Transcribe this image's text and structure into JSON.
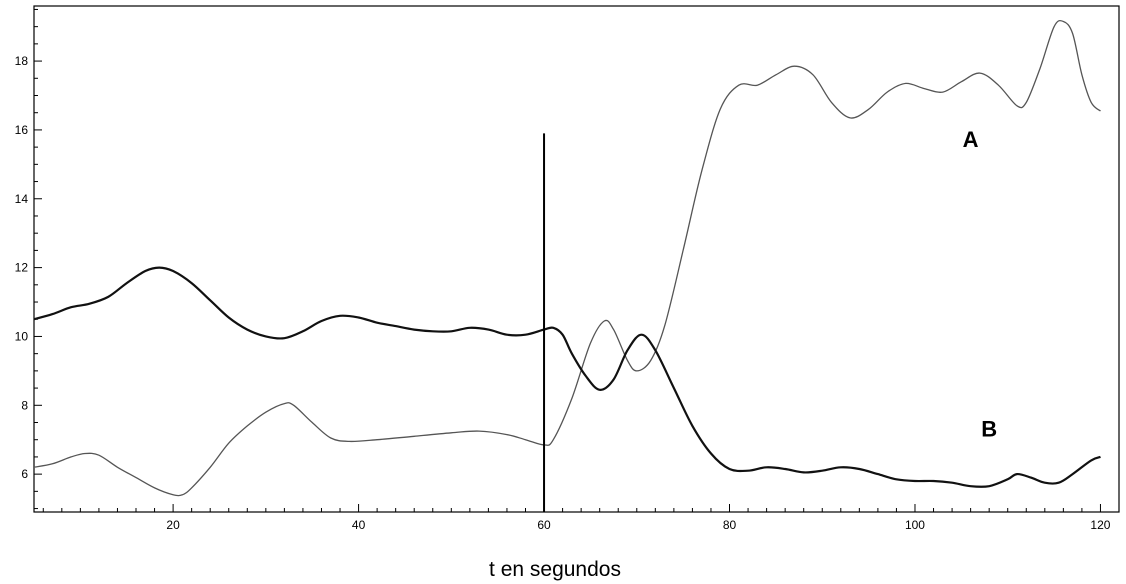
{
  "chart_data": {
    "type": "line",
    "xlabel": "t en segundos",
    "ylabel": "",
    "xlim": [
      5,
      122
    ],
    "ylim": [
      4.9,
      19.6
    ],
    "x_ticks": [
      20,
      40,
      60,
      80,
      100,
      120
    ],
    "y_ticks": [
      6,
      8,
      10,
      12,
      14,
      16,
      18
    ],
    "grid": false,
    "annotations": [
      {
        "text": "A",
        "x": 106,
        "y": 15.5
      },
      {
        "text": "B",
        "x": 108,
        "y": 7.1
      }
    ],
    "reference_line": {
      "x": 60,
      "y_from": 4.9,
      "y_to": 15.9
    },
    "series": [
      {
        "name": "A",
        "color": "#555555",
        "points": [
          [
            5,
            6.2
          ],
          [
            7,
            6.3
          ],
          [
            9,
            6.5
          ],
          [
            10.5,
            6.6
          ],
          [
            12,
            6.55
          ],
          [
            14,
            6.2
          ],
          [
            16,
            5.9
          ],
          [
            18,
            5.6
          ],
          [
            20,
            5.4
          ],
          [
            21,
            5.4
          ],
          [
            22,
            5.6
          ],
          [
            24,
            6.2
          ],
          [
            26,
            6.9
          ],
          [
            28,
            7.4
          ],
          [
            30,
            7.8
          ],
          [
            32,
            8.05
          ],
          [
            33,
            8.0
          ],
          [
            35,
            7.5
          ],
          [
            37,
            7.05
          ],
          [
            39,
            6.95
          ],
          [
            42,
            7.0
          ],
          [
            46,
            7.1
          ],
          [
            50,
            7.2
          ],
          [
            53,
            7.25
          ],
          [
            56,
            7.15
          ],
          [
            58,
            7.0
          ],
          [
            60,
            6.85
          ],
          [
            61,
            7.0
          ],
          [
            63,
            8.2
          ],
          [
            65,
            9.8
          ],
          [
            66.5,
            10.45
          ],
          [
            67.5,
            10.2
          ],
          [
            69,
            9.3
          ],
          [
            70,
            9.0
          ],
          [
            71.5,
            9.3
          ],
          [
            73,
            10.3
          ],
          [
            75,
            12.5
          ],
          [
            77,
            14.8
          ],
          [
            79,
            16.6
          ],
          [
            81,
            17.3
          ],
          [
            83,
            17.3
          ],
          [
            85,
            17.6
          ],
          [
            87,
            17.85
          ],
          [
            89,
            17.6
          ],
          [
            91,
            16.8
          ],
          [
            93,
            16.35
          ],
          [
            95,
            16.6
          ],
          [
            97,
            17.1
          ],
          [
            99,
            17.35
          ],
          [
            101,
            17.2
          ],
          [
            103,
            17.1
          ],
          [
            105,
            17.4
          ],
          [
            107,
            17.65
          ],
          [
            109,
            17.3
          ],
          [
            111,
            16.7
          ],
          [
            112,
            16.8
          ],
          [
            113.5,
            17.8
          ],
          [
            115,
            19.0
          ],
          [
            116,
            19.15
          ],
          [
            117,
            18.8
          ],
          [
            118,
            17.6
          ],
          [
            119,
            16.8
          ],
          [
            120,
            16.55
          ]
        ]
      },
      {
        "name": "B",
        "color": "#111111",
        "points": [
          [
            5,
            10.5
          ],
          [
            7,
            10.65
          ],
          [
            9,
            10.85
          ],
          [
            11,
            10.95
          ],
          [
            13,
            11.15
          ],
          [
            15,
            11.55
          ],
          [
            17,
            11.9
          ],
          [
            18.5,
            12.0
          ],
          [
            20,
            11.9
          ],
          [
            22,
            11.55
          ],
          [
            24,
            11.05
          ],
          [
            26,
            10.55
          ],
          [
            28,
            10.2
          ],
          [
            30,
            10.0
          ],
          [
            32,
            9.95
          ],
          [
            34,
            10.15
          ],
          [
            36,
            10.45
          ],
          [
            38,
            10.6
          ],
          [
            40,
            10.55
          ],
          [
            42,
            10.4
          ],
          [
            44,
            10.3
          ],
          [
            46,
            10.2
          ],
          [
            48,
            10.15
          ],
          [
            50,
            10.15
          ],
          [
            52,
            10.25
          ],
          [
            54,
            10.2
          ],
          [
            56,
            10.05
          ],
          [
            58,
            10.05
          ],
          [
            60,
            10.2
          ],
          [
            61,
            10.25
          ],
          [
            62,
            10.05
          ],
          [
            63,
            9.5
          ],
          [
            64.5,
            8.85
          ],
          [
            66,
            8.45
          ],
          [
            67.5,
            8.75
          ],
          [
            69,
            9.6
          ],
          [
            70.5,
            10.05
          ],
          [
            72,
            9.6
          ],
          [
            74,
            8.5
          ],
          [
            76,
            7.4
          ],
          [
            78,
            6.6
          ],
          [
            80,
            6.15
          ],
          [
            82,
            6.1
          ],
          [
            84,
            6.2
          ],
          [
            86,
            6.15
          ],
          [
            88,
            6.05
          ],
          [
            90,
            6.1
          ],
          [
            92,
            6.2
          ],
          [
            94,
            6.15
          ],
          [
            96,
            6.0
          ],
          [
            98,
            5.85
          ],
          [
            100,
            5.8
          ],
          [
            102,
            5.8
          ],
          [
            104,
            5.75
          ],
          [
            106,
            5.65
          ],
          [
            108,
            5.65
          ],
          [
            110,
            5.85
          ],
          [
            111,
            6.0
          ],
          [
            112.5,
            5.9
          ],
          [
            114,
            5.75
          ],
          [
            115.5,
            5.75
          ],
          [
            117,
            6.0
          ],
          [
            119,
            6.4
          ],
          [
            120,
            6.5
          ]
        ]
      }
    ]
  }
}
